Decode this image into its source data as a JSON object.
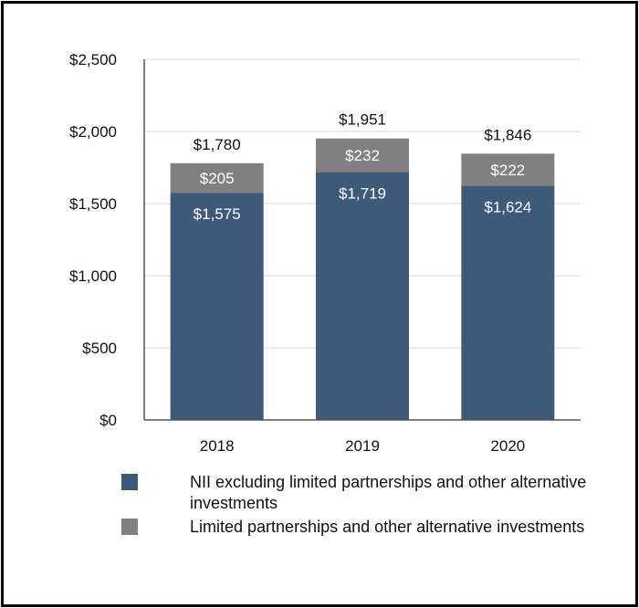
{
  "colors": {
    "primary_series": "#3e5a7a",
    "secondary_series": "#808080",
    "gridline": "#d9d9d9",
    "axis": "#555555",
    "text": "#111111",
    "bar_label_inside": "#ffffff"
  },
  "chart_data": {
    "type": "bar",
    "stacked": true,
    "title": "",
    "xlabel": "",
    "ylabel": "",
    "categories": [
      "2018",
      "2019",
      "2020"
    ],
    "series": [
      {
        "name": "NII excluding limited partnerships and other alternative investments",
        "values": [
          1575,
          1719,
          1624
        ],
        "labels": [
          "$1,575",
          "$1,719",
          "$1,624"
        ]
      },
      {
        "name": "Limited partnerships and other alternative investments",
        "values": [
          205,
          232,
          222
        ],
        "labels": [
          "$205",
          "$232",
          "$222"
        ]
      }
    ],
    "totals": [
      1780,
      1951,
      1846
    ],
    "total_labels": [
      "$1,780",
      "$1,951",
      "$1,846"
    ],
    "ylim": [
      0,
      2500
    ],
    "yticks": [
      0,
      500,
      1000,
      1500,
      2000,
      2500
    ],
    "ytick_labels": [
      "$0",
      "$500",
      "$1,000",
      "$1,500",
      "$2,000",
      "$2,500"
    ],
    "grid": true,
    "legend_position": "bottom"
  },
  "legend": {
    "items": [
      {
        "label": "NII excluding limited partnerships and other alternative investments"
      },
      {
        "label": "Limited partnerships and other alternative investments"
      }
    ]
  }
}
